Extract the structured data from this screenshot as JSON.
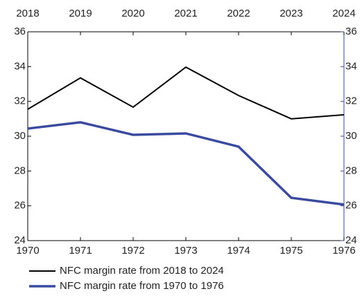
{
  "chart_data": {
    "type": "line",
    "x": [
      1970,
      1971,
      1972,
      1973,
      1974,
      1975,
      1976
    ],
    "x2": [
      2018,
      2019,
      2020,
      2021,
      2022,
      2023,
      2024
    ],
    "series": [
      {
        "name": "NFC margin rate from 2018 to 2024",
        "color": "#000000",
        "xaxis": "x2",
        "values": [
          31.55,
          33.35,
          31.67,
          33.97,
          32.34,
          31.0,
          31.23
        ]
      },
      {
        "name": "NFC margin rate from 1970 to 1976",
        "color": "#3a4a9e",
        "xaxis": "x",
        "values": [
          30.44,
          30.8,
          30.08,
          30.16,
          29.4,
          26.46,
          26.07
        ]
      }
    ],
    "ylim": [
      24,
      36
    ],
    "yticks": [
      24,
      26,
      28,
      30,
      32,
      34,
      36
    ],
    "y2lim": [
      24,
      36
    ],
    "y2ticks": [
      24,
      26,
      28,
      30,
      32,
      34,
      36
    ],
    "grid": false,
    "legend": "bottom"
  }
}
